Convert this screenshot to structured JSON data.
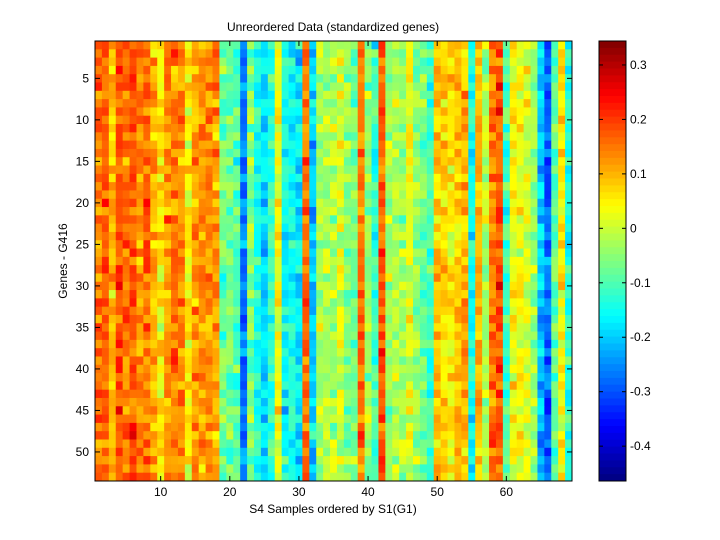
{
  "chart_data": {
    "type": "heatmap",
    "title": "Unreordered Data (standardized genes)",
    "xlabel": "S4 Samples ordered by S1(G1)",
    "ylabel": "Genes - G416",
    "n_columns": 69,
    "n_rows": 53,
    "xlim": [
      0.5,
      69.5
    ],
    "ylim": [
      0.5,
      53.5
    ],
    "xticks": [
      10,
      20,
      30,
      40,
      50,
      60
    ],
    "xtick_labels": [
      "10",
      "20",
      "30",
      "40",
      "50",
      "60"
    ],
    "yticks": [
      5,
      10,
      15,
      20,
      25,
      30,
      35,
      40,
      45,
      50
    ],
    "ytick_labels": [
      "5",
      "10",
      "15",
      "20",
      "25",
      "30",
      "35",
      "40",
      "45",
      "50"
    ],
    "colormap": "jet",
    "clim": [
      -0.464,
      0.344
    ],
    "colorbar_ticks": [
      0.3,
      0.2,
      0.1,
      0,
      -0.1,
      -0.2,
      -0.3,
      -0.4
    ],
    "colorbar_tick_labels": [
      "0.3",
      "0.2",
      "0.1",
      "0",
      "-0.1",
      "-0.2",
      "-0.3",
      "-0.4"
    ],
    "column_means": [
      0.15,
      0.17,
      0.1,
      0.18,
      0.15,
      0.17,
      0.14,
      0.15,
      0.1,
      0.05,
      0.12,
      0.15,
      0.14,
      0.04,
      0.12,
      0.13,
      0.14,
      0.12,
      -0.08,
      -0.08,
      -0.1,
      -0.26,
      -0.06,
      -0.14,
      -0.2,
      -0.12,
      0.03,
      -0.15,
      -0.15,
      -0.17,
      0.16,
      -0.2,
      -0.03,
      -0.02,
      -0.03,
      0.01,
      -0.05,
      -0.07,
      0.15,
      -0.04,
      -0.12,
      0.18,
      -0.04,
      -0.02,
      -0.03,
      0.02,
      -0.05,
      -0.07,
      -0.1,
      0.08,
      0.07,
      0.05,
      0.09,
      0.1,
      -0.15,
      0.1,
      -0.02,
      0.15,
      0.18,
      -0.1,
      0.04,
      0.03,
      0.02,
      -0.04,
      -0.22,
      -0.28,
      -0.08,
      0.05,
      -0.14
    ],
    "cell_noise_sd": 0.05,
    "grid": false
  }
}
